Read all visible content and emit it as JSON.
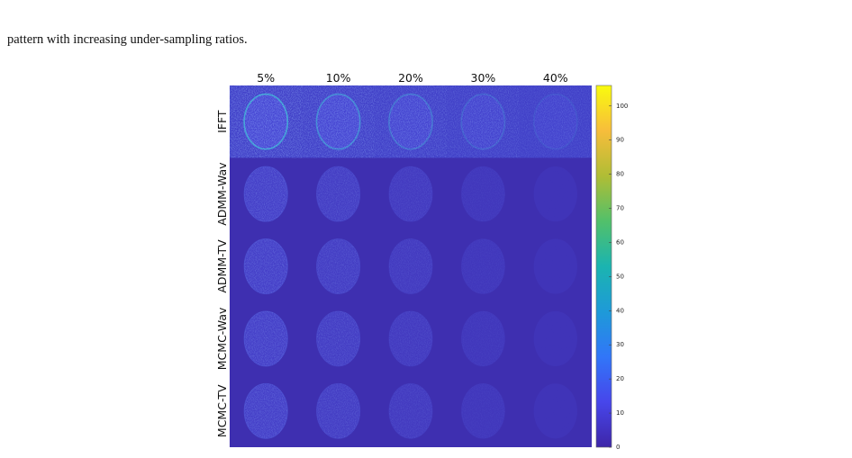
{
  "caption": "pattern with increasing under-sampling ratios.",
  "figure": {
    "columns": [
      "5%",
      "10%",
      "20%",
      "30%",
      "40%"
    ],
    "rows": [
      "IFFT",
      "ADMM-Wav",
      "ADMM-TV",
      "MCMC-Wav",
      "MCMC-TV"
    ],
    "colorbar": {
      "lim": [
        0,
        106
      ],
      "ticks": [
        0,
        10,
        20,
        30,
        40,
        50,
        60,
        70,
        80,
        90,
        100
      ]
    }
  }
}
